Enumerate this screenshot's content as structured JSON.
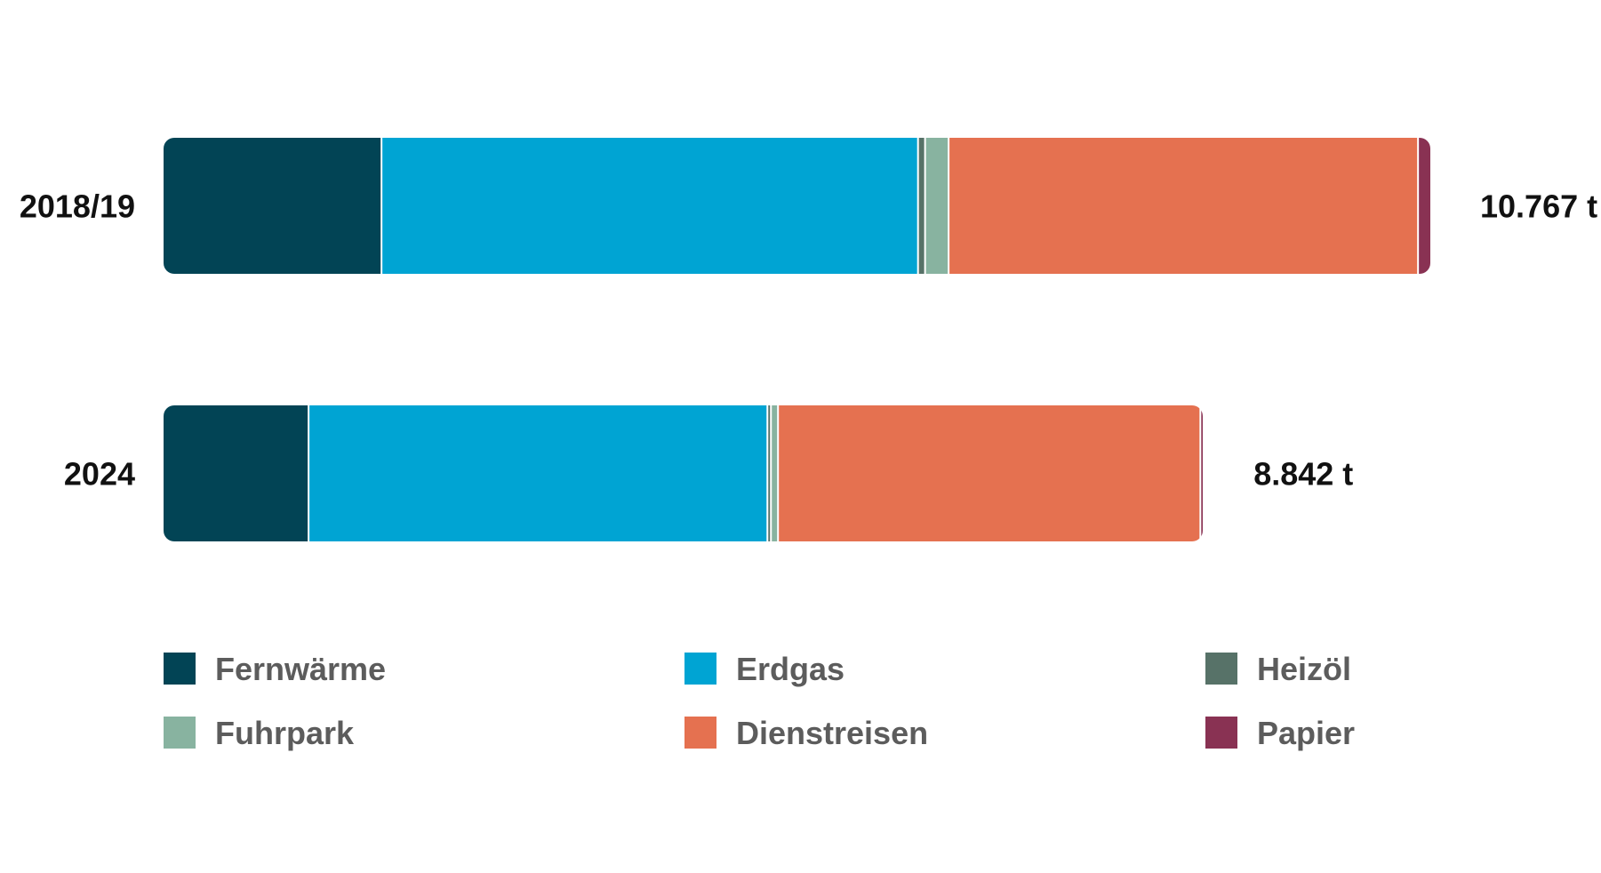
{
  "chart_data": {
    "type": "bar",
    "orientation": "horizontal",
    "stacked": true,
    "unit": "t",
    "categories": [
      "2018/19",
      "2024"
    ],
    "totals": [
      "10.767 t",
      "8.842 t"
    ],
    "total_values": [
      10767,
      8842
    ],
    "series": [
      {
        "name": "Fernwärme",
        "color": "#024455",
        "values": [
          1860,
          1240
        ]
      },
      {
        "name": "Erdgas",
        "color": "#00a4d3",
        "values": [
          4560,
          3900
        ]
      },
      {
        "name": "Heizöl",
        "color": "#577268",
        "values": [
          60,
          30
        ]
      },
      {
        "name": "Fuhrpark",
        "color": "#88b3a0",
        "values": [
          200,
          60
        ]
      },
      {
        "name": "Dienstreisen",
        "color": "#e57150",
        "values": [
          3990,
          3590
        ]
      },
      {
        "name": "Papier",
        "color": "#893253",
        "values": [
          97,
          22
        ]
      }
    ],
    "xlim": [
      0,
      10767
    ],
    "grid": false,
    "legend": "bottom"
  }
}
